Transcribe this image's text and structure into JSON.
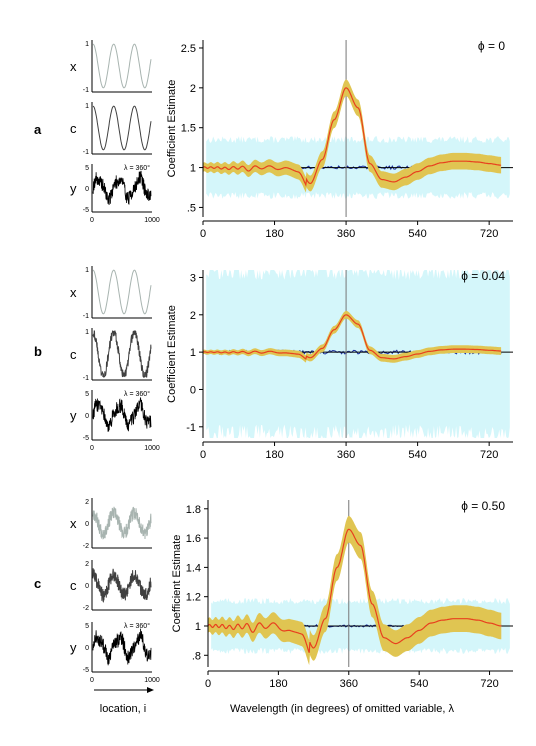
{
  "figure": {
    "xlabel": "Wavelength (in degrees) of omitted variable, λ",
    "location_label": "location, i",
    "colors": {
      "estimate_line": "#e8401e",
      "ci_band": "#e0c552",
      "null_band": "#d4f6fa",
      "blue_series": "#1c2fa0",
      "x_series": "#a8b4b0",
      "c_series": "#404040",
      "y_series": "#000000"
    }
  },
  "chart_data": [
    {
      "panel": "a",
      "type": "line",
      "phi_label": "ϕ = 0",
      "ylabel": "Coefficient Estimate",
      "x_ticks": [
        "0",
        "180",
        "360",
        "540",
        "720"
      ],
      "y_ticks": [
        "2.5",
        "2",
        "1.5",
        "1",
        ".5"
      ],
      "xlim": [
        0,
        780
      ],
      "ylim": [
        0.38,
        2.6
      ],
      "x": [
        0,
        30,
        60,
        90,
        120,
        150,
        180,
        210,
        240,
        270,
        300,
        330,
        360,
        390,
        420,
        450,
        480,
        510,
        540,
        570,
        600,
        630,
        660,
        690,
        720,
        750,
        780
      ],
      "series": [
        {
          "values": [
            1.0,
            1.0,
            0.99,
            1.0,
            0.98,
            1.02,
            0.96,
            1.06,
            1.02,
            0.8,
            1.1,
            1.6,
            2.0,
            1.75,
            1.05,
            0.85,
            0.82,
            0.88,
            0.95,
            1.02,
            1.06,
            1.08,
            1.08,
            1.07,
            1.05,
            1.03,
            1.0
          ]
        }
      ],
      "sub_series": [
        {
          "label": "x",
          "y_ticks": [
            "1",
            "-1"
          ]
        },
        {
          "label": "c",
          "y_ticks": [
            "1",
            "-1"
          ]
        },
        {
          "label": "y",
          "y_ticks": [
            "5",
            "0",
            "-5"
          ],
          "annotation": "λ = 360°"
        }
      ],
      "sub_x_ticks": [
        "0",
        "1000"
      ]
    },
    {
      "panel": "b",
      "type": "line",
      "phi_label": "ϕ = 0.04",
      "ylabel": "Coefficient Estimate",
      "x_ticks": [
        "0",
        "180",
        "360",
        "540",
        "720"
      ],
      "y_ticks": [
        "3",
        "2",
        "1",
        "0",
        "-1"
      ],
      "xlim": [
        0,
        780
      ],
      "ylim": [
        -1.3,
        3.2
      ],
      "x": [
        0,
        30,
        60,
        90,
        120,
        150,
        180,
        210,
        240,
        270,
        300,
        330,
        360,
        390,
        420,
        450,
        480,
        510,
        540,
        570,
        600,
        630,
        660,
        690,
        720,
        750,
        780
      ],
      "series": [
        {
          "values": [
            1.0,
            1.0,
            0.99,
            1.0,
            0.99,
            1.01,
            0.97,
            1.04,
            1.02,
            0.85,
            1.1,
            1.6,
            2.0,
            1.75,
            1.05,
            0.85,
            0.82,
            0.88,
            0.95,
            1.02,
            1.06,
            1.08,
            1.08,
            1.07,
            1.05,
            1.03,
            1.0
          ]
        }
      ],
      "sub_series": [
        {
          "label": "x",
          "y_ticks": [
            "1",
            "-1"
          ]
        },
        {
          "label": "c",
          "y_ticks": [
            "1",
            "-1"
          ]
        },
        {
          "label": "y",
          "y_ticks": [
            "5",
            "0",
            "-5"
          ],
          "annotation": "λ = 360°"
        }
      ],
      "sub_x_ticks": [
        "0",
        "1000"
      ]
    },
    {
      "panel": "c",
      "type": "line",
      "phi_label": "ϕ = 0.50",
      "ylabel": "Coefficient Estimate",
      "x_ticks": [
        "0",
        "180",
        "360",
        "540",
        "720"
      ],
      "y_ticks": [
        "1.8",
        "1.6",
        "1.4",
        "1.2",
        "1",
        ".8"
      ],
      "xlim": [
        0,
        780
      ],
      "ylim": [
        0.72,
        1.86
      ],
      "x": [
        0,
        30,
        60,
        90,
        120,
        150,
        180,
        210,
        240,
        270,
        300,
        330,
        360,
        390,
        420,
        450,
        480,
        510,
        540,
        570,
        600,
        630,
        660,
        690,
        720,
        750,
        780
      ],
      "series": [
        {
          "values": [
            1.0,
            1.0,
            0.99,
            1.0,
            0.98,
            1.02,
            0.96,
            1.03,
            1.02,
            0.85,
            1.05,
            1.4,
            1.66,
            1.55,
            1.15,
            0.92,
            0.88,
            0.92,
            0.97,
            1.02,
            1.04,
            1.05,
            1.05,
            1.04,
            1.02,
            1.0,
            0.98
          ]
        }
      ],
      "sub_series": [
        {
          "label": "x",
          "y_ticks": [
            "2",
            "0",
            "-2"
          ]
        },
        {
          "label": "c",
          "y_ticks": [
            "2",
            "0",
            "-2"
          ]
        },
        {
          "label": "y",
          "y_ticks": [
            "5",
            "0",
            "-5"
          ],
          "annotation": "λ = 360°"
        }
      ],
      "sub_x_ticks": [
        "0",
        "1000"
      ]
    }
  ]
}
